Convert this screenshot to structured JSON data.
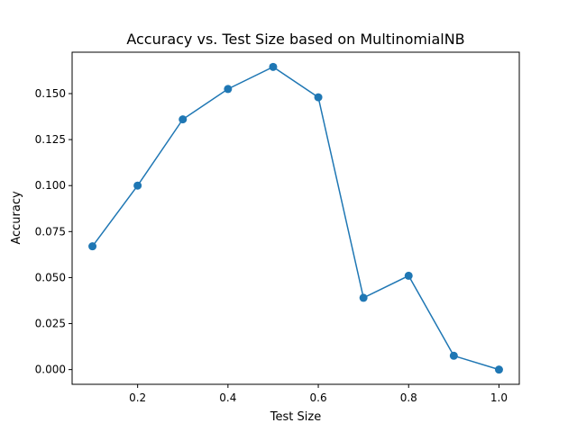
{
  "chart_data": {
    "type": "line",
    "title": "Accuracy vs. Test Size based on MultinomialNB",
    "xlabel": "Test Size",
    "ylabel": "Accuracy",
    "xlim": [
      0.055,
      1.045
    ],
    "ylim": [
      -0.008,
      0.1725
    ],
    "grid": false,
    "series": [
      {
        "color": "#1f77b4",
        "marker": "circle",
        "x": [
          0.1,
          0.2,
          0.3,
          0.4,
          0.5,
          0.6,
          0.7,
          0.8,
          0.9,
          1.0
        ],
        "y": [
          0.067,
          0.1,
          0.136,
          0.1525,
          0.1645,
          0.148,
          0.039,
          0.051,
          0.0075,
          0.0
        ]
      }
    ],
    "xticks": [
      {
        "value": 0.2,
        "label": "0.2"
      },
      {
        "value": 0.4,
        "label": "0.4"
      },
      {
        "value": 0.6,
        "label": "0.6"
      },
      {
        "value": 0.8,
        "label": "0.8"
      },
      {
        "value": 1.0,
        "label": "1.0"
      }
    ],
    "yticks": [
      {
        "value": 0.0,
        "label": "0.000"
      },
      {
        "value": 0.025,
        "label": "0.025"
      },
      {
        "value": 0.05,
        "label": "0.050"
      },
      {
        "value": 0.075,
        "label": "0.075"
      },
      {
        "value": 0.1,
        "label": "0.100"
      },
      {
        "value": 0.125,
        "label": "0.125"
      },
      {
        "value": 0.15,
        "label": "0.150"
      }
    ]
  }
}
